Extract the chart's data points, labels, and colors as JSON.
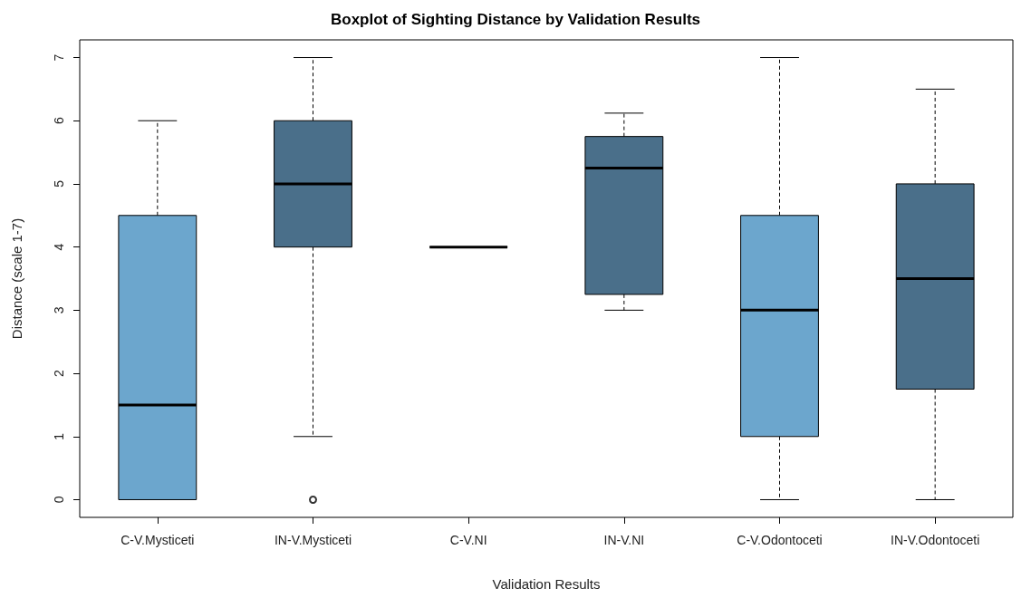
{
  "chart_data": {
    "type": "box",
    "title": "Boxplot of Sighting Distance by Validation Results",
    "xlabel": "Validation Results",
    "ylabel": "Distance (scale 1-7)",
    "categories": [
      "C-V.Mysticeti",
      "IN-V.Mysticeti",
      "C-V.NI",
      "IN-V.NI",
      "C-V.Odontoceti",
      "IN-V.Odontoceti"
    ],
    "boxes": [
      {
        "low": 0,
        "q1": 0,
        "median": 1.5,
        "q3": 4.5,
        "high": 6
      },
      {
        "low": 1,
        "q1": 4,
        "median": 5,
        "q3": 6,
        "high": 7,
        "outliers": [
          0
        ]
      },
      {
        "low": 4,
        "q1": 4,
        "median": 4,
        "q3": 4,
        "high": 4
      },
      {
        "low": 3,
        "q1": 3.25,
        "median": 5.25,
        "q3": 5.75,
        "high": 6.12
      },
      {
        "low": 0,
        "q1": 1,
        "median": 3,
        "q3": 4.5,
        "high": 7
      },
      {
        "low": 0,
        "q1": 1.75,
        "median": 3.5,
        "q3": 5,
        "high": 6.5
      }
    ],
    "colors": [
      "#6ca6cd",
      "#4a6f8a",
      "#000000",
      "#4a6f8a",
      "#6ca6cd",
      "#4a6f8a"
    ],
    "ylim": [
      -0.28,
      7.28
    ],
    "yticks": [
      0,
      1,
      2,
      3,
      4,
      5,
      6,
      7
    ],
    "grid": false
  }
}
